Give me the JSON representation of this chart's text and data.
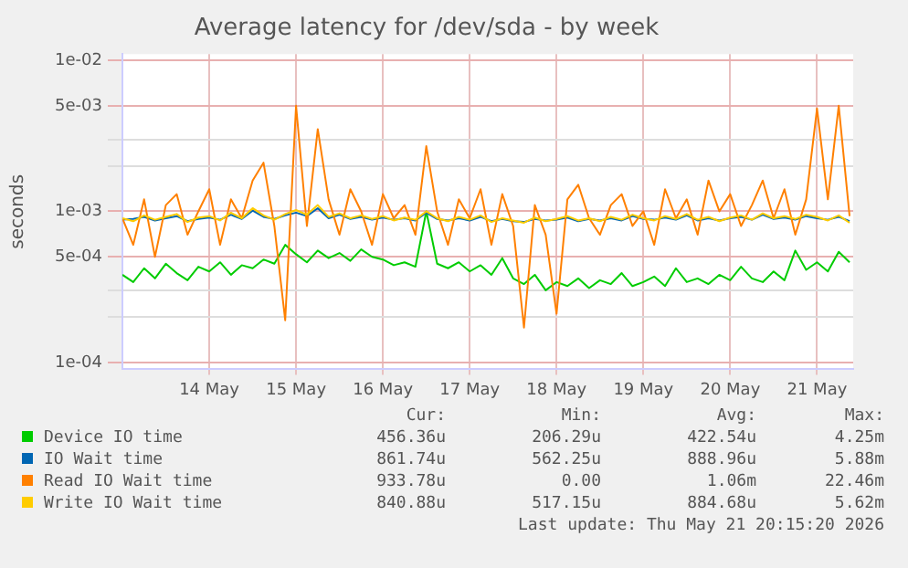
{
  "chart_data": {
    "type": "line",
    "title": "Average latency for /dev/sda - by week",
    "ylabel": "seconds",
    "log": "y",
    "grid": true,
    "legend": "bottom",
    "marker": "none",
    "line_style": "solid",
    "xlim": [
      "2026-05-13T12:00",
      "2026-05-21T22:00"
    ],
    "xticks": [
      {
        "value": "2026-05-14T12:00",
        "label": "14 May"
      },
      {
        "value": "2026-05-15T12:00",
        "label": "15 May"
      },
      {
        "value": "2026-05-16T12:00",
        "label": "16 May"
      },
      {
        "value": "2026-05-17T12:00",
        "label": "17 May"
      },
      {
        "value": "2026-05-18T12:00",
        "label": "18 May"
      },
      {
        "value": "2026-05-19T12:00",
        "label": "19 May"
      },
      {
        "value": "2026-05-20T12:00",
        "label": "20 May"
      },
      {
        "value": "2026-05-21T12:00",
        "label": "21 May"
      }
    ],
    "ylim": [
      9e-05,
      0.011
    ],
    "yticks": [
      {
        "value": 0.0001,
        "label": "1e-04"
      },
      {
        "value": 0.0002,
        "label": null
      },
      {
        "value": 0.0003,
        "label": null
      },
      {
        "value": 0.0005,
        "label": "5e-04"
      },
      {
        "value": 0.001,
        "label": "1e-03"
      },
      {
        "value": 0.002,
        "label": null
      },
      {
        "value": 0.003,
        "label": null
      },
      {
        "value": 0.005,
        "label": "5e-03"
      },
      {
        "value": 0.01,
        "label": "1e-02"
      }
    ],
    "x": [
      "2026-05-13T12:00",
      "2026-05-13T15:00",
      "2026-05-13T18:00",
      "2026-05-13T21:00",
      "2026-05-14T00:00",
      "2026-05-14T03:00",
      "2026-05-14T06:00",
      "2026-05-14T09:00",
      "2026-05-14T12:00",
      "2026-05-14T15:00",
      "2026-05-14T18:00",
      "2026-05-14T21:00",
      "2026-05-15T00:00",
      "2026-05-15T03:00",
      "2026-05-15T06:00",
      "2026-05-15T09:00",
      "2026-05-15T12:00",
      "2026-05-15T15:00",
      "2026-05-15T18:00",
      "2026-05-15T21:00",
      "2026-05-16T00:00",
      "2026-05-16T03:00",
      "2026-05-16T06:00",
      "2026-05-16T09:00",
      "2026-05-16T12:00",
      "2026-05-16T15:00",
      "2026-05-16T18:00",
      "2026-05-16T21:00",
      "2026-05-17T00:00",
      "2026-05-17T03:00",
      "2026-05-17T06:00",
      "2026-05-17T09:00",
      "2026-05-17T12:00",
      "2026-05-17T15:00",
      "2026-05-17T18:00",
      "2026-05-17T21:00",
      "2026-05-18T00:00",
      "2026-05-18T03:00",
      "2026-05-18T06:00",
      "2026-05-18T09:00",
      "2026-05-18T12:00",
      "2026-05-18T15:00",
      "2026-05-18T18:00",
      "2026-05-18T21:00",
      "2026-05-19T00:00",
      "2026-05-19T03:00",
      "2026-05-19T06:00",
      "2026-05-19T09:00",
      "2026-05-19T12:00",
      "2026-05-19T15:00",
      "2026-05-19T18:00",
      "2026-05-19T21:00",
      "2026-05-20T00:00",
      "2026-05-20T03:00",
      "2026-05-20T06:00",
      "2026-05-20T09:00",
      "2026-05-20T12:00",
      "2026-05-20T15:00",
      "2026-05-20T18:00",
      "2026-05-20T21:00",
      "2026-05-21T00:00",
      "2026-05-21T03:00",
      "2026-05-21T06:00",
      "2026-05-21T09:00",
      "2026-05-21T12:00",
      "2026-05-21T15:00",
      "2026-05-21T18:00",
      "2026-05-21T21:00"
    ],
    "series": [
      {
        "name": "Device IO time",
        "color": "#00cc00",
        "values": [
          0.00038,
          0.00034,
          0.00042,
          0.00036,
          0.00045,
          0.00039,
          0.00035,
          0.00043,
          0.0004,
          0.00046,
          0.00038,
          0.00044,
          0.00042,
          0.00048,
          0.00045,
          0.0006,
          0.00052,
          0.00046,
          0.00055,
          0.00049,
          0.00053,
          0.00047,
          0.00056,
          0.0005,
          0.00048,
          0.00044,
          0.00046,
          0.00043,
          0.001,
          0.00045,
          0.00042,
          0.00046,
          0.0004,
          0.00044,
          0.00038,
          0.00049,
          0.00036,
          0.00033,
          0.00038,
          0.0003,
          0.00034,
          0.00032,
          0.00036,
          0.00031,
          0.00035,
          0.00033,
          0.00039,
          0.00032,
          0.00034,
          0.00037,
          0.00032,
          0.00042,
          0.00034,
          0.00036,
          0.00033,
          0.00038,
          0.00035,
          0.00043,
          0.00036,
          0.00034,
          0.0004,
          0.00035,
          0.00055,
          0.00041,
          0.00046,
          0.0004,
          0.00054,
          0.00046
        ]
      },
      {
        "name": "IO Wait time",
        "color": "#0066b3",
        "values": [
          0.00088,
          0.00089,
          0.00092,
          0.00087,
          0.0009,
          0.00093,
          0.00086,
          0.00089,
          0.00091,
          0.00088,
          0.00095,
          0.00089,
          0.00101,
          0.00092,
          0.00089,
          0.00094,
          0.00098,
          0.00093,
          0.00105,
          0.0009,
          0.00095,
          0.00089,
          0.00092,
          0.00088,
          0.00091,
          0.00088,
          0.0009,
          0.00087,
          0.00098,
          0.00089,
          0.00087,
          0.0009,
          0.00087,
          0.00092,
          0.00086,
          0.00089,
          0.00086,
          0.00085,
          0.00089,
          0.00087,
          0.00088,
          0.00091,
          0.00086,
          0.00089,
          0.00087,
          0.0009,
          0.00087,
          0.00093,
          0.00089,
          0.00088,
          0.00091,
          0.00088,
          0.00094,
          0.00087,
          0.0009,
          0.00087,
          0.0009,
          0.00092,
          0.00088,
          0.00095,
          0.00089,
          0.00091,
          0.00088,
          0.00093,
          0.0009,
          0.00088,
          0.00092,
          0.00086
        ]
      },
      {
        "name": "Read IO Wait time",
        "color": "#ff8000",
        "values": [
          0.0009,
          0.0006,
          0.0012,
          0.0005,
          0.0011,
          0.0013,
          0.0007,
          0.001,
          0.0014,
          0.0006,
          0.0012,
          0.0009,
          0.0016,
          0.0021,
          0.0008,
          0.00019,
          0.005,
          0.0008,
          0.0035,
          0.0012,
          0.0007,
          0.0014,
          0.001,
          0.0006,
          0.0013,
          0.0009,
          0.0011,
          0.0007,
          0.0027,
          0.001,
          0.0006,
          0.0012,
          0.0009,
          0.0014,
          0.0006,
          0.0013,
          0.0008,
          0.00017,
          0.0011,
          0.0007,
          0.00021,
          0.0012,
          0.0015,
          0.0009,
          0.0007,
          0.0011,
          0.0013,
          0.0008,
          0.001,
          0.0006,
          0.0014,
          0.0009,
          0.0012,
          0.0007,
          0.0016,
          0.001,
          0.0013,
          0.0008,
          0.0011,
          0.0016,
          0.0009,
          0.0014,
          0.0007,
          0.0012,
          0.0048,
          0.0012,
          0.005,
          0.00093
        ]
      },
      {
        "name": "Write IO Wait time",
        "color": "#ffcc00",
        "values": [
          0.0009,
          0.00086,
          0.00094,
          0.00088,
          0.00092,
          0.00096,
          0.00085,
          0.00091,
          0.00093,
          0.00087,
          0.00098,
          0.0009,
          0.00105,
          0.00094,
          0.00088,
          0.00096,
          0.00102,
          0.00095,
          0.0011,
          0.00092,
          0.00097,
          0.0009,
          0.00094,
          0.00089,
          0.00093,
          0.00087,
          0.00091,
          0.00088,
          0.001,
          0.0009,
          0.00086,
          0.00092,
          0.00088,
          0.00094,
          0.00085,
          0.0009,
          0.00087,
          0.00084,
          0.00091,
          0.00086,
          0.00089,
          0.00093,
          0.00087,
          0.0009,
          0.00086,
          0.00092,
          0.00088,
          0.00095,
          0.0009,
          0.00087,
          0.00093,
          0.00089,
          0.00096,
          0.00088,
          0.00092,
          0.00086,
          0.00091,
          0.00094,
          0.00088,
          0.00097,
          0.0009,
          0.00093,
          0.00089,
          0.00095,
          0.00092,
          0.00087,
          0.00094,
          0.00084
        ]
      }
    ],
    "annotations": [
      "Cur:",
      "Min:",
      "Avg:",
      "Max:",
      "456.36u",
      "206.29u",
      "422.54u",
      "4.25m",
      "861.74u",
      "562.25u",
      "888.96u",
      "5.88m",
      "933.78u",
      "0.00",
      "1.06m",
      "22.46m",
      "840.88u",
      "517.15u",
      "884.68u",
      "5.62m",
      "Last update: Thu May 21 20:15:20 2026"
    ]
  }
}
